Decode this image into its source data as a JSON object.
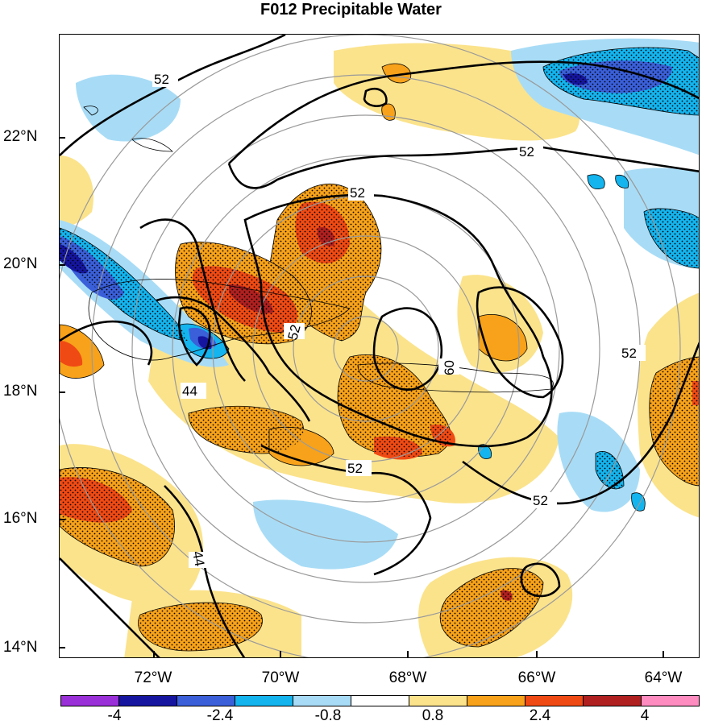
{
  "title": "F012 Precipitable Water",
  "latitude_labels": [
    "22°N",
    "20°N",
    "18°N",
    "16°N",
    "14°N"
  ],
  "longitude_labels": [
    "72°W",
    "70°W",
    "68°W",
    "66°W",
    "64°W"
  ],
  "contour_labels": [
    "52",
    "52",
    "52",
    "52",
    "52",
    "52",
    "52",
    "44",
    "44",
    "60"
  ],
  "colorbar": {
    "labels": [
      "-4",
      "-2.4",
      "-0.8",
      "0.8",
      "2.4",
      "4"
    ],
    "colors": [
      "#9a30d8",
      "#1515a0",
      "#3a5fd9",
      "#14b4ee",
      "#a8dcf6",
      "#ffffff",
      "#fbe38c",
      "#f7a21a",
      "#f04a14",
      "#b02020",
      "#ff8cc0"
    ]
  },
  "colors": {
    "contour": "#000000",
    "range_ring": "#9a9a9a",
    "positive_light": "#fbe38c",
    "positive_mid": "#f7a21a",
    "positive_high": "#f04a14",
    "positive_max": "#b02020",
    "negative_light": "#a8dcf6",
    "negative_mid": "#14b4ee",
    "negative_high": "#3a5fd9",
    "negative_max": "#1515a0"
  }
}
